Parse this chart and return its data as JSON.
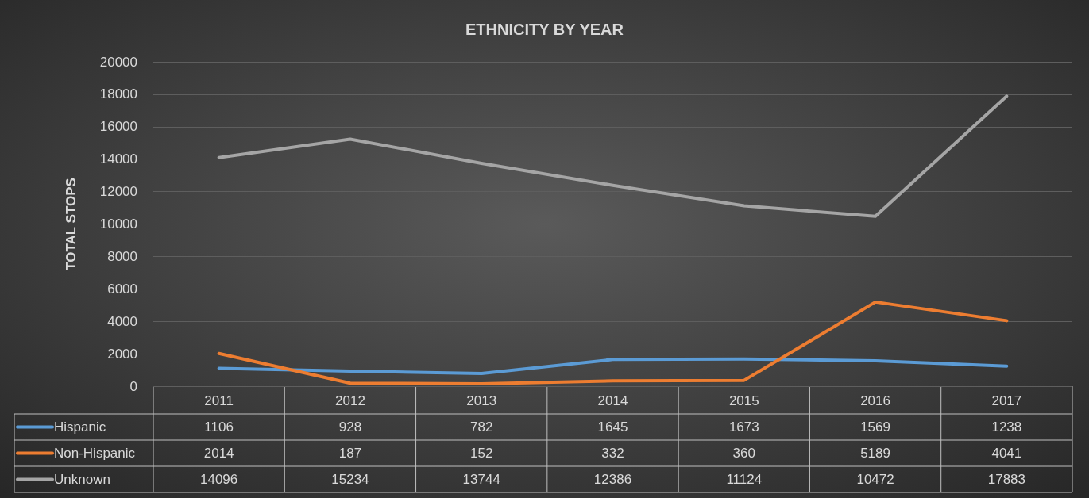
{
  "chart_data": {
    "type": "line",
    "title": "ETHNICITY BY YEAR",
    "ylabel": "TOTAL STOPS",
    "categories": [
      "2011",
      "2012",
      "2013",
      "2014",
      "2015",
      "2016",
      "2017"
    ],
    "series": [
      {
        "name": "Hispanic",
        "color": "#5b9bd5",
        "values": [
          1106,
          928,
          782,
          1645,
          1673,
          1569,
          1238
        ]
      },
      {
        "name": "Non-Hispanic",
        "color": "#ed7d31",
        "values": [
          2014,
          187,
          152,
          332,
          360,
          5189,
          4041
        ]
      },
      {
        "name": "Unknown",
        "color": "#a5a5a5",
        "values": [
          14096,
          15234,
          13744,
          12386,
          11124,
          10472,
          17883
        ]
      }
    ],
    "ylim": [
      0,
      20000
    ],
    "yticks": [
      0,
      2000,
      4000,
      6000,
      8000,
      10000,
      12000,
      14000,
      16000,
      18000,
      20000
    ],
    "grid": "y",
    "legend": "bottom",
    "data_labels": true,
    "marker": "none",
    "line_style": "solid"
  }
}
